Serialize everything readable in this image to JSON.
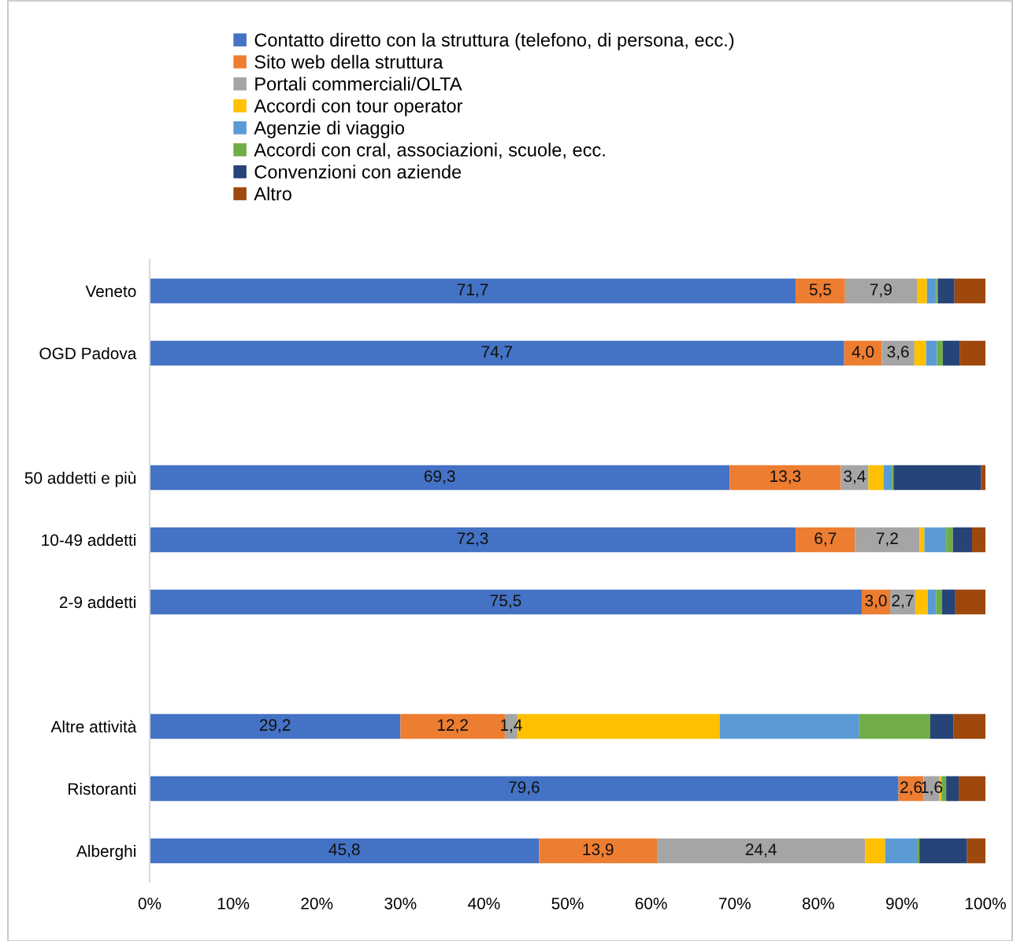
{
  "chart_data": {
    "type": "bar",
    "orientation": "horizontal",
    "stacked": true,
    "legend": "top",
    "grid": false,
    "categories": [
      "Veneto",
      "OGD Padova",
      null,
      "50 addetti e più",
      "10-49 addetti",
      "2-9 addetti",
      null,
      "Altre attività",
      "Ristoranti",
      "Alberghi"
    ],
    "xlim": [
      0,
      100
    ],
    "xticks": [
      {
        "value": 0,
        "label": "0%"
      },
      {
        "value": 10,
        "label": "10%"
      },
      {
        "value": 20,
        "label": "20%"
      },
      {
        "value": 30,
        "label": "30%"
      },
      {
        "value": 40,
        "label": "40%"
      },
      {
        "value": 50,
        "label": "50%"
      },
      {
        "value": 60,
        "label": "60%"
      },
      {
        "value": 70,
        "label": "70%"
      },
      {
        "value": 80,
        "label": "80%"
      },
      {
        "value": 90,
        "label": "90%"
      },
      {
        "value": 100,
        "label": "100%"
      }
    ],
    "series": [
      {
        "name": "Contatto diretto con la struttura (telefono, di persona, ecc.)",
        "color": "#4472c4",
        "values": [
          77.3,
          83.1,
          null,
          69.4,
          77.3,
          85.2,
          null,
          30.0,
          89.6,
          46.6
        ]
      },
      {
        "name": "Sito web della struttura",
        "color": "#ed7d31",
        "values": [
          5.9,
          4.5,
          null,
          13.3,
          7.1,
          3.4,
          null,
          12.5,
          3.0,
          14.1
        ]
      },
      {
        "name": "Portali commerciali/OLTA",
        "color": "#a5a5a5",
        "values": [
          8.6,
          3.9,
          null,
          3.3,
          7.7,
          3.0,
          null,
          1.5,
          1.9,
          24.9
        ]
      },
      {
        "name": "Accordi con tour operator",
        "color": "#ffc000",
        "values": [
          1.2,
          1.4,
          null,
          1.8,
          0.6,
          1.5,
          null,
          24.2,
          0.2,
          2.4
        ]
      },
      {
        "name": "Agenzie di viaggio",
        "color": "#5b9bd5",
        "values": [
          1.1,
          1.3,
          null,
          1.0,
          2.6,
          1.0,
          null,
          16.7,
          0.1,
          3.8
        ]
      },
      {
        "name": "Accordi con cral, associazioni, scuole, ecc.",
        "color": "#70ad47",
        "values": [
          0.2,
          0.7,
          null,
          0.2,
          0.8,
          0.7,
          null,
          8.5,
          0.5,
          0.3
        ]
      },
      {
        "name": "Convenzioni con aziende",
        "color": "#264478",
        "values": [
          2.0,
          2.0,
          null,
          10.5,
          2.3,
          1.6,
          null,
          2.8,
          1.5,
          5.7
        ]
      },
      {
        "name": "Altro",
        "color": "#9e480e",
        "values": [
          3.7,
          3.1,
          null,
          0.5,
          1.6,
          3.6,
          null,
          3.8,
          3.2,
          2.2
        ]
      }
    ],
    "annotations": [
      "71,7",
      "5,5",
      "7,9",
      "74,7",
      "4,0",
      "3,6",
      "69,3",
      "13,3",
      "3,4",
      "72,3",
      "6,7",
      "7,2",
      "75,5",
      "3,0",
      "2,7",
      "29,2",
      "12,2",
      "1,4",
      "79,6",
      "2,6",
      "1,6",
      "45,8",
      "13,9",
      "24,4"
    ]
  }
}
